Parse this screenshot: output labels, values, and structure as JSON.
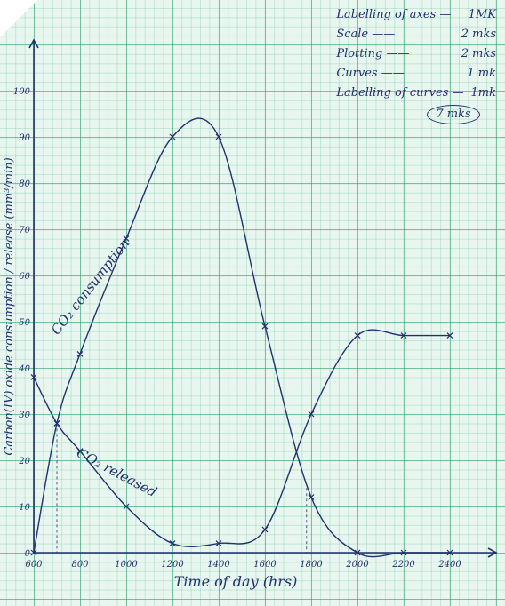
{
  "marking_scheme": {
    "rows": [
      {
        "item": "Labelling of axes —",
        "marks": "1MK"
      },
      {
        "item": "Scale ——",
        "marks": "2 mks"
      },
      {
        "item": "Plotting ——",
        "marks": "2 mks"
      },
      {
        "item": "Curves ——",
        "marks": "1 mk"
      },
      {
        "item": "Labelling of curves —",
        "marks": "1mk"
      }
    ],
    "total": "7 mks"
  },
  "chart_data": {
    "type": "line",
    "xlabel": "Time of day (hrs)",
    "ylabel": "Carbon(IV) oxide consumption / release (mm³/min)",
    "x_ticks": [
      "600",
      "800",
      "1000",
      "1200",
      "1400",
      "1600",
      "1800",
      "2000",
      "2200",
      "2400"
    ],
    "y_ticks": [
      "0",
      "10",
      "20",
      "30",
      "40",
      "50",
      "60",
      "70",
      "80",
      "90",
      "100"
    ],
    "xlim": [
      600,
      2430
    ],
    "ylim": [
      0,
      110
    ],
    "grid": true,
    "series": [
      {
        "name": "CO₂ consumption",
        "color": "#22306e",
        "points": [
          [
            600,
            0
          ],
          [
            700,
            28
          ],
          [
            800,
            43
          ],
          [
            1000,
            68
          ],
          [
            1200,
            90
          ],
          [
            1400,
            90
          ],
          [
            1600,
            49
          ],
          [
            1800,
            12
          ],
          [
            2000,
            0
          ],
          [
            2200,
            0
          ],
          [
            2400,
            0
          ]
        ]
      },
      {
        "name": "CO₂ released",
        "color": "#22306e",
        "points": [
          [
            600,
            38
          ],
          [
            700,
            28
          ],
          [
            800,
            22
          ],
          [
            1000,
            10
          ],
          [
            1200,
            2
          ],
          [
            1400,
            2
          ],
          [
            1600,
            5
          ],
          [
            1800,
            30
          ],
          [
            2000,
            47
          ],
          [
            2200,
            47
          ],
          [
            2400,
            47
          ]
        ]
      }
    ],
    "annotations": [
      {
        "text": "CO₂ consumption",
        "x": 860,
        "y": 57,
        "rotate": -52
      },
      {
        "text": "CO₂ released",
        "x": 950,
        "y": 16.5,
        "rotate": 28
      }
    ],
    "drop_lines": [
      {
        "x": 700,
        "y": 28
      },
      {
        "x": 1780,
        "y": 14
      }
    ]
  }
}
